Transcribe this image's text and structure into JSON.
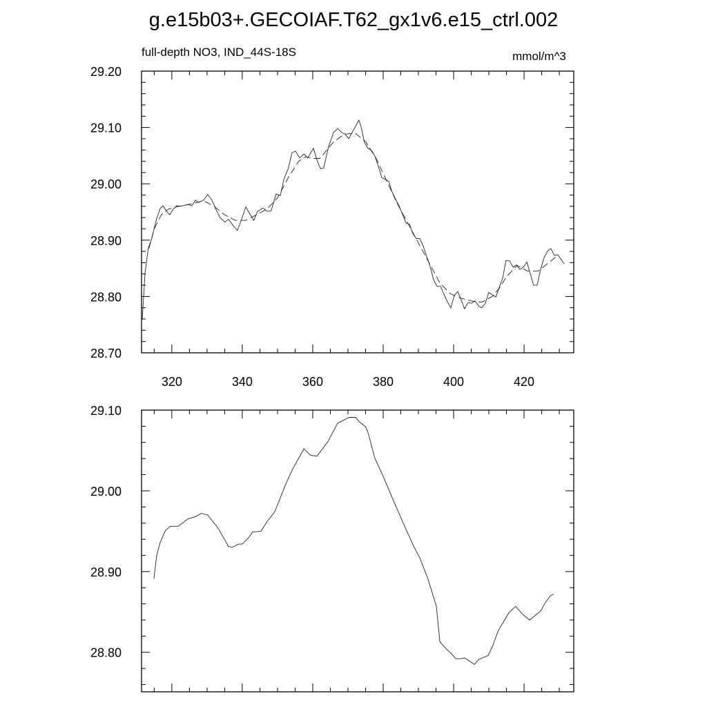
{
  "title": "g.e15b03+.GECOIAF.T62_gx1v6.e15_ctrl.002",
  "chart_data": [
    {
      "type": "line",
      "left_label": "full-depth NO3, IND_44S-18S",
      "right_label": "mmol/m^3",
      "xlim": [
        311.4,
        434.1
      ],
      "ylim": [
        28.7,
        29.2
      ],
      "x_ticks": [
        320,
        340,
        360,
        380,
        400,
        420
      ],
      "x_tick_labels": [
        "320",
        "340",
        "360",
        "380",
        "400",
        "420"
      ],
      "x_minor_step": 5,
      "y_ticks": [
        28.7,
        28.8,
        28.9,
        29.0,
        29.1,
        29.2
      ],
      "y_tick_labels": [
        "28.70",
        "28.80",
        "28.90",
        "29.00",
        "29.10",
        "29.20"
      ],
      "y_minor_step": 0.02,
      "grid": false,
      "series": [
        {
          "style": "solid",
          "x": [
            311.6,
            312.4,
            313.3,
            314.3,
            315.5,
            316.7,
            317.5,
            318.4,
            319.4,
            320.4,
            321.4,
            322.5,
            323.7,
            324.7,
            325.7,
            326.7,
            327.6,
            329.0,
            330.2,
            331.4,
            332.5,
            333.7,
            335.1,
            336.1,
            337.3,
            338.6,
            339.8,
            341.0,
            342.4,
            343.3,
            344.3,
            345.9,
            347.1,
            348.2,
            349.6,
            350.8,
            351.8,
            353.1,
            354.1,
            355.1,
            356.3,
            357.5,
            358.6,
            360.2,
            361.2,
            362.2,
            363.1,
            364.5,
            365.9,
            367.1,
            368.2,
            369.2,
            370.2,
            371.2,
            373.1,
            373.7,
            374.7,
            375.7,
            376.7,
            377.6,
            378.6,
            379.6,
            380.6,
            381.6,
            382.5,
            383.5,
            384.5,
            385.5,
            386.5,
            387.5,
            388.4,
            389.4,
            390.4,
            391.4,
            392.4,
            393.3,
            394.3,
            395.3,
            396.3,
            397.3,
            398.2,
            399.2,
            400.2,
            401.2,
            402.2,
            403.1,
            404.1,
            405.1,
            406.1,
            407.1,
            408.0,
            409.0,
            410.0,
            411.0,
            412.0,
            412.9,
            413.9,
            414.9,
            415.9,
            416.9,
            417.8,
            418.8,
            419.8,
            420.8,
            421.8,
            422.7,
            423.7,
            424.7,
            425.7,
            426.7,
            427.6,
            428.6,
            429.6,
            430.6,
            431.4
          ],
          "y": [
            28.759,
            28.842,
            28.885,
            28.903,
            28.934,
            28.956,
            28.961,
            28.952,
            28.945,
            28.955,
            28.961,
            28.96,
            28.962,
            28.963,
            28.961,
            28.971,
            28.967,
            28.971,
            28.981,
            28.971,
            28.955,
            28.94,
            28.932,
            28.937,
            28.927,
            28.917,
            28.937,
            28.959,
            28.944,
            28.935,
            28.951,
            28.957,
            28.951,
            28.952,
            28.982,
            28.979,
            29.008,
            29.028,
            29.055,
            29.058,
            29.046,
            29.053,
            29.046,
            29.063,
            29.042,
            29.027,
            29.028,
            29.066,
            29.091,
            29.098,
            29.091,
            29.088,
            29.08,
            29.091,
            29.113,
            29.102,
            29.073,
            29.063,
            29.059,
            29.05,
            29.032,
            29.011,
            29.008,
            29.004,
            28.986,
            28.973,
            28.961,
            28.946,
            28.93,
            28.928,
            28.912,
            28.903,
            28.903,
            28.889,
            28.87,
            28.854,
            28.83,
            28.818,
            28.818,
            28.803,
            28.791,
            28.78,
            28.802,
            28.809,
            28.793,
            28.778,
            28.789,
            28.788,
            28.792,
            28.783,
            28.78,
            28.788,
            28.807,
            28.803,
            28.799,
            28.815,
            28.832,
            28.864,
            28.863,
            28.852,
            28.856,
            28.848,
            28.852,
            28.861,
            28.84,
            28.82,
            28.82,
            28.848,
            28.869,
            28.881,
            28.885,
            28.873,
            28.874,
            28.865,
            28.858
          ]
        },
        {
          "style": "dashed",
          "x": [
            313.5,
            315,
            317,
            319,
            322,
            326,
            329,
            332,
            335,
            338,
            341,
            344,
            347,
            350,
            353,
            356,
            358,
            360,
            362,
            364,
            366,
            369,
            372,
            375,
            378,
            381,
            384,
            387,
            390,
            393,
            396,
            399,
            402,
            405,
            408,
            411,
            413,
            415,
            418,
            421,
            424,
            427,
            429
          ],
          "y": [
            28.885,
            28.92,
            28.945,
            28.955,
            28.96,
            28.965,
            28.97,
            28.96,
            28.945,
            28.935,
            28.935,
            28.945,
            28.955,
            28.975,
            29.01,
            29.04,
            29.048,
            29.045,
            29.045,
            29.06,
            29.075,
            29.088,
            29.09,
            29.075,
            29.045,
            29.005,
            28.965,
            28.93,
            28.895,
            28.86,
            28.825,
            28.805,
            28.797,
            28.792,
            28.79,
            28.8,
            28.815,
            28.835,
            28.855,
            28.845,
            28.845,
            28.86,
            28.87
          ]
        }
      ]
    },
    {
      "type": "line",
      "xlim": [
        311.4,
        434.1
      ],
      "ylim": [
        28.751,
        29.1
      ],
      "x_ticks": [
        320,
        340,
        360,
        380,
        400,
        420
      ],
      "x_minor_step": 5,
      "y_ticks": [
        28.8,
        28.9,
        29.0,
        29.1
      ],
      "y_tick_labels": [
        "28.80",
        "28.90",
        "29.00",
        "29.10"
      ],
      "y_minor_step": 0.02,
      "grid": false,
      "series": [
        {
          "style": "solid",
          "x": [
            314.9,
            315.7,
            316.7,
            318.2,
            319.6,
            321.8,
            324.5,
            326.7,
            328.4,
            330.2,
            333.1,
            336.1,
            337.1,
            339.0,
            340.0,
            342.0,
            342.9,
            345.3,
            346.9,
            349.2,
            352.4,
            354.3,
            357.5,
            359.4,
            361.2,
            364.3,
            367.1,
            370.4,
            372.2,
            373.1,
            375.1,
            375.9,
            377.6,
            380.0,
            382.9,
            385.9,
            388.8,
            390.4,
            392.7,
            395.1,
            396.1,
            397.5,
            399.6,
            400.6,
            402.2,
            403.1,
            404.9,
            405.9,
            407.1,
            409.8,
            411.0,
            412.7,
            415.7,
            417.6,
            419.6,
            421.6,
            424.7,
            426.1,
            427.5,
            428.4
          ],
          "y": [
            28.891,
            28.92,
            28.936,
            28.951,
            28.956,
            28.956,
            28.965,
            28.968,
            28.972,
            28.97,
            28.954,
            28.931,
            28.93,
            28.934,
            28.934,
            28.943,
            28.949,
            28.95,
            28.961,
            28.974,
            29.009,
            29.027,
            29.052,
            29.044,
            29.043,
            29.061,
            29.084,
            29.091,
            29.091,
            29.086,
            29.079,
            29.069,
            29.041,
            29.018,
            28.988,
            28.958,
            28.93,
            28.917,
            28.891,
            28.857,
            28.813,
            28.806,
            28.797,
            28.792,
            28.792,
            28.793,
            28.788,
            28.785,
            28.791,
            28.796,
            28.807,
            28.827,
            28.849,
            28.857,
            28.847,
            28.84,
            28.851,
            28.862,
            28.87,
            28.872
          ]
        }
      ]
    }
  ]
}
